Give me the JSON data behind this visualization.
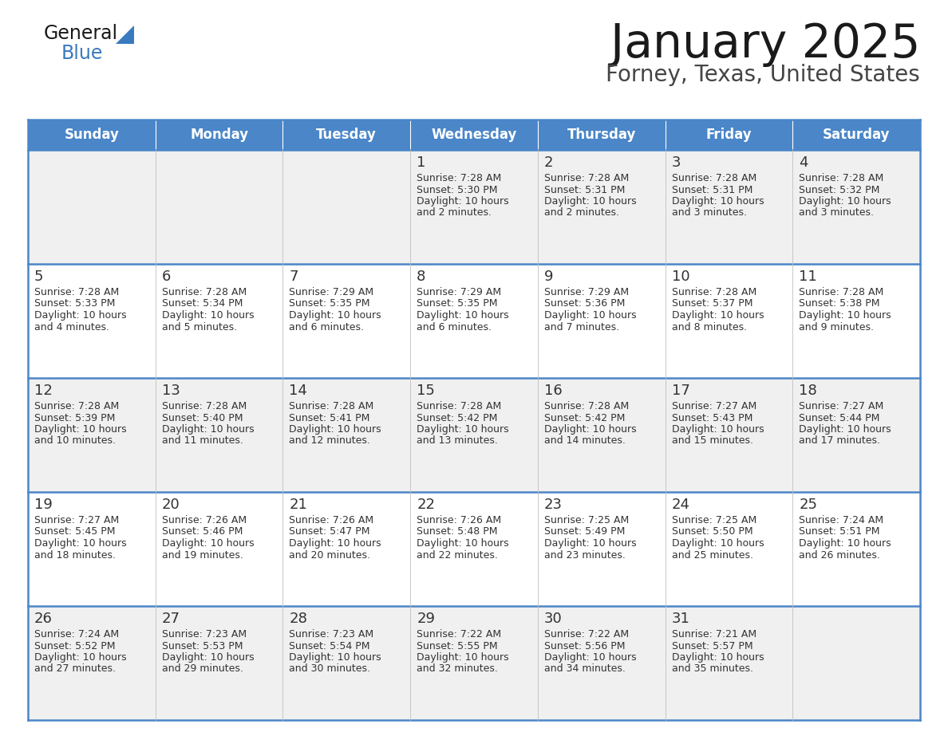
{
  "title": "January 2025",
  "subtitle": "Forney, Texas, United States",
  "days_of_week": [
    "Sunday",
    "Monday",
    "Tuesday",
    "Wednesday",
    "Thursday",
    "Friday",
    "Saturday"
  ],
  "header_bg": "#4a86c8",
  "header_text": "#ffffff",
  "cell_bg_odd": "#f0f0f0",
  "cell_bg_even": "#ffffff",
  "cell_text": "#333333",
  "day_num_color": "#333333",
  "border_color": "#4a86c8",
  "weeks": [
    [
      {
        "date": "",
        "sunrise": "",
        "sunset": "",
        "daylight": ""
      },
      {
        "date": "",
        "sunrise": "",
        "sunset": "",
        "daylight": ""
      },
      {
        "date": "",
        "sunrise": "",
        "sunset": "",
        "daylight": ""
      },
      {
        "date": "1",
        "sunrise": "7:28 AM",
        "sunset": "5:30 PM",
        "daylight": "and 2 minutes."
      },
      {
        "date": "2",
        "sunrise": "7:28 AM",
        "sunset": "5:31 PM",
        "daylight": "and 2 minutes."
      },
      {
        "date": "3",
        "sunrise": "7:28 AM",
        "sunset": "5:31 PM",
        "daylight": "and 3 minutes."
      },
      {
        "date": "4",
        "sunrise": "7:28 AM",
        "sunset": "5:32 PM",
        "daylight": "and 3 minutes."
      }
    ],
    [
      {
        "date": "5",
        "sunrise": "7:28 AM",
        "sunset": "5:33 PM",
        "daylight": "and 4 minutes."
      },
      {
        "date": "6",
        "sunrise": "7:28 AM",
        "sunset": "5:34 PM",
        "daylight": "and 5 minutes."
      },
      {
        "date": "7",
        "sunrise": "7:29 AM",
        "sunset": "5:35 PM",
        "daylight": "and 6 minutes."
      },
      {
        "date": "8",
        "sunrise": "7:29 AM",
        "sunset": "5:35 PM",
        "daylight": "and 6 minutes."
      },
      {
        "date": "9",
        "sunrise": "7:29 AM",
        "sunset": "5:36 PM",
        "daylight": "and 7 minutes."
      },
      {
        "date": "10",
        "sunrise": "7:28 AM",
        "sunset": "5:37 PM",
        "daylight": "and 8 minutes."
      },
      {
        "date": "11",
        "sunrise": "7:28 AM",
        "sunset": "5:38 PM",
        "daylight": "and 9 minutes."
      }
    ],
    [
      {
        "date": "12",
        "sunrise": "7:28 AM",
        "sunset": "5:39 PM",
        "daylight": "and 10 minutes."
      },
      {
        "date": "13",
        "sunrise": "7:28 AM",
        "sunset": "5:40 PM",
        "daylight": "and 11 minutes."
      },
      {
        "date": "14",
        "sunrise": "7:28 AM",
        "sunset": "5:41 PM",
        "daylight": "and 12 minutes."
      },
      {
        "date": "15",
        "sunrise": "7:28 AM",
        "sunset": "5:42 PM",
        "daylight": "and 13 minutes."
      },
      {
        "date": "16",
        "sunrise": "7:28 AM",
        "sunset": "5:42 PM",
        "daylight": "and 14 minutes."
      },
      {
        "date": "17",
        "sunrise": "7:27 AM",
        "sunset": "5:43 PM",
        "daylight": "and 15 minutes."
      },
      {
        "date": "18",
        "sunrise": "7:27 AM",
        "sunset": "5:44 PM",
        "daylight": "and 17 minutes."
      }
    ],
    [
      {
        "date": "19",
        "sunrise": "7:27 AM",
        "sunset": "5:45 PM",
        "daylight": "and 18 minutes."
      },
      {
        "date": "20",
        "sunrise": "7:26 AM",
        "sunset": "5:46 PM",
        "daylight": "and 19 minutes."
      },
      {
        "date": "21",
        "sunrise": "7:26 AM",
        "sunset": "5:47 PM",
        "daylight": "and 20 minutes."
      },
      {
        "date": "22",
        "sunrise": "7:26 AM",
        "sunset": "5:48 PM",
        "daylight": "and 22 minutes."
      },
      {
        "date": "23",
        "sunrise": "7:25 AM",
        "sunset": "5:49 PM",
        "daylight": "and 23 minutes."
      },
      {
        "date": "24",
        "sunrise": "7:25 AM",
        "sunset": "5:50 PM",
        "daylight": "and 25 minutes."
      },
      {
        "date": "25",
        "sunrise": "7:24 AM",
        "sunset": "5:51 PM",
        "daylight": "and 26 minutes."
      }
    ],
    [
      {
        "date": "26",
        "sunrise": "7:24 AM",
        "sunset": "5:52 PM",
        "daylight": "and 27 minutes."
      },
      {
        "date": "27",
        "sunrise": "7:23 AM",
        "sunset": "5:53 PM",
        "daylight": "and 29 minutes."
      },
      {
        "date": "28",
        "sunrise": "7:23 AM",
        "sunset": "5:54 PM",
        "daylight": "and 30 minutes."
      },
      {
        "date": "29",
        "sunrise": "7:22 AM",
        "sunset": "5:55 PM",
        "daylight": "and 32 minutes."
      },
      {
        "date": "30",
        "sunrise": "7:22 AM",
        "sunset": "5:56 PM",
        "daylight": "and 34 minutes."
      },
      {
        "date": "31",
        "sunrise": "7:21 AM",
        "sunset": "5:57 PM",
        "daylight": "and 35 minutes."
      },
      {
        "date": "",
        "sunrise": "",
        "sunset": "",
        "daylight": ""
      }
    ]
  ]
}
